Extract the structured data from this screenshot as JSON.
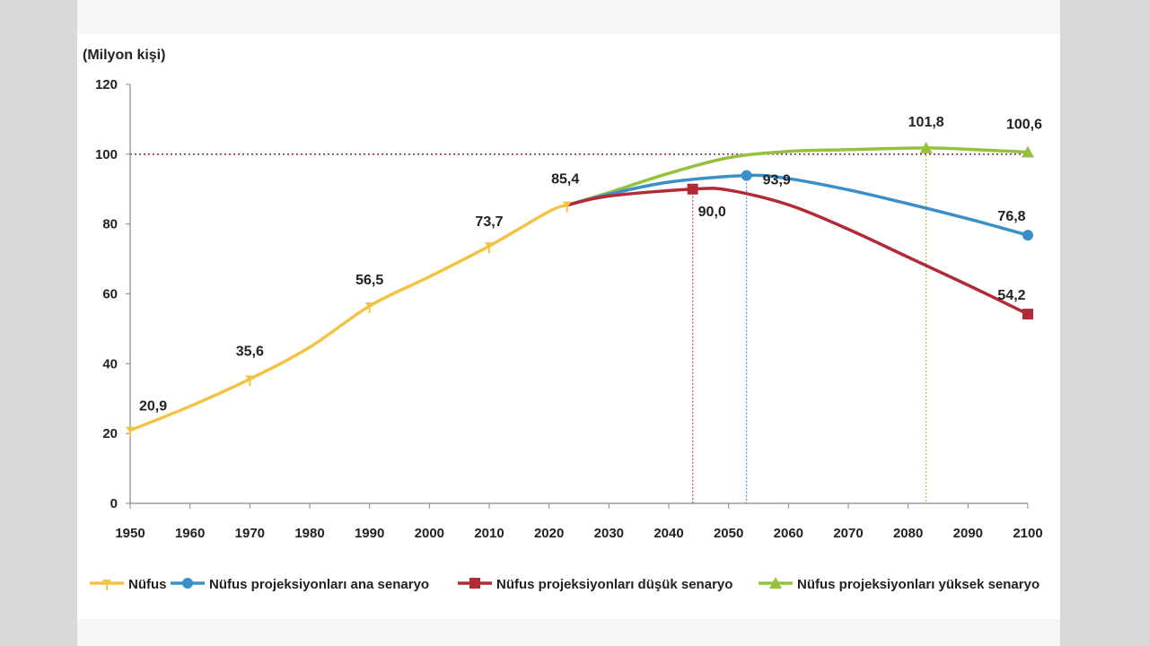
{
  "chart_data": {
    "type": "line",
    "unit_label": "(Milyon kişi)",
    "ylim": [
      0,
      120
    ],
    "yticks": [
      0,
      20,
      40,
      60,
      80,
      100,
      120
    ],
    "xlim": [
      1950,
      2100
    ],
    "xticks": [
      1950,
      1960,
      1970,
      1980,
      1990,
      2000,
      2010,
      2020,
      2030,
      2040,
      2050,
      2060,
      2070,
      2080,
      2090,
      2100
    ],
    "reference_line": 100,
    "series": [
      {
        "key": "nufus",
        "name": "Nüfus",
        "color": "#f2c445",
        "x": [
          1950,
          1960,
          1970,
          1980,
          1990,
          2000,
          2010,
          2020,
          2023
        ],
        "values": [
          20.9,
          27.8,
          35.6,
          44.7,
          56.5,
          64.9,
          73.7,
          83.6,
          85.4
        ],
        "markers": [
          1950,
          1970,
          1990,
          2010,
          2023
        ]
      },
      {
        "key": "ana",
        "name": "Nüfus projeksiyonları ana senaryo",
        "color": "#3a8fc7",
        "x": [
          2023,
          2030,
          2040,
          2053,
          2060,
          2070,
          2080,
          2090,
          2100
        ],
        "values": [
          85.4,
          88.5,
          92.0,
          93.9,
          93.0,
          89.8,
          85.8,
          81.5,
          76.8
        ],
        "markers": [
          2053,
          2100
        ]
      },
      {
        "key": "dusuk",
        "name": "Nüfus projeksiyonları düşük senaryo",
        "color": "#b22a35",
        "x": [
          2023,
          2030,
          2044,
          2050,
          2060,
          2070,
          2080,
          2090,
          2100
        ],
        "values": [
          85.4,
          88.0,
          90.0,
          89.7,
          85.5,
          78.5,
          70.5,
          62.5,
          54.2
        ],
        "markers": [
          2044,
          2100
        ]
      },
      {
        "key": "yuksek",
        "name": "Nüfus projeksiyonları yüksek senaryo",
        "color": "#95c13d",
        "x": [
          2023,
          2030,
          2040,
          2050,
          2060,
          2070,
          2083,
          2090,
          2100
        ],
        "values": [
          85.4,
          89.0,
          94.5,
          99.0,
          100.8,
          101.3,
          101.8,
          101.4,
          100.6
        ],
        "markers": [
          2083,
          2100
        ]
      }
    ],
    "drop_lines": [
      {
        "x": 2044,
        "y": 90.0,
        "color": "#d04050"
      },
      {
        "x": 2053,
        "y": 93.9,
        "color": "#3a8fc7"
      },
      {
        "x": 2083,
        "y": 101.8,
        "color": "#95c13d"
      }
    ],
    "annotations": [
      {
        "x": 1950,
        "y": 20.9,
        "text": "20,9"
      },
      {
        "x": 1970,
        "y": 35.6,
        "text": "35,6"
      },
      {
        "x": 1990,
        "y": 56.5,
        "text": "56,5"
      },
      {
        "x": 2010,
        "y": 73.7,
        "text": "73,7"
      },
      {
        "x": 2023,
        "y": 85.4,
        "text": "85,4"
      },
      {
        "x": 2044,
        "y": 90.0,
        "text": "90,0"
      },
      {
        "x": 2053,
        "y": 93.9,
        "text": "93,9"
      },
      {
        "x": 2083,
        "y": 101.8,
        "text": "101,8"
      },
      {
        "x": 2100,
        "y": 100.6,
        "text": "100,6"
      },
      {
        "x": 2100,
        "y": 76.8,
        "text": "76,8"
      },
      {
        "x": 2100,
        "y": 54.2,
        "text": "54,2"
      }
    ]
  }
}
